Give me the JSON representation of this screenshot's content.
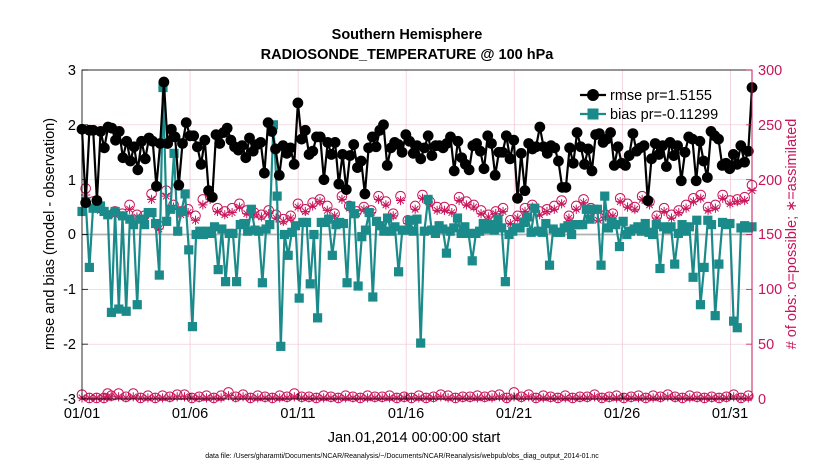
{
  "chart_data": {
    "type": "line",
    "title": [
      "Southern Hemisphere",
      "RADIOSONDE_TEMPERATURE @ 100 hPa"
    ],
    "xlabel": "Jan.01,2014 00:00:00 start",
    "ylabel": "rmse and bias (model - observation)",
    "ylabel_right": "# of obs: o=possible; ∗=assimilated",
    "footnote": "data file: /Users/gharamti/Documents/NCAR/Reanalysis/~/Documents/NCAR/Reanalysis/webpub/obs_diag_output_2014-01.nc",
    "xlim": [
      1,
      32
    ],
    "ylim": [
      -3,
      3
    ],
    "ylim_right": [
      0,
      300
    ],
    "x_ticks": [
      1,
      6,
      11,
      16,
      21,
      26,
      31
    ],
    "x_tick_labels": [
      "01/01",
      "01/06",
      "01/11",
      "01/16",
      "01/21",
      "01/26",
      "01/31"
    ],
    "y_ticks": [
      "-3",
      "-2",
      "-1",
      "0",
      "1",
      "2",
      "3"
    ],
    "y_ticks_right": [
      "0",
      "50",
      "100",
      "150",
      "200",
      "250",
      "300"
    ],
    "legend_position": "top-right",
    "zero_line": true,
    "colors": {
      "rmse": "#000000",
      "bias": "#1a8a8a",
      "counts": "#c8155a",
      "zero_line": "#b0b0b0"
    },
    "series": [
      {
        "name": "rmse pr=1.5155",
        "axis": "left",
        "marker": "circle",
        "values": [
          1.92,
          0.58,
          1.9,
          1.9,
          0.62,
          1.88,
          1.58,
          1.96,
          1.94,
          1.72,
          1.88,
          1.4,
          1.7,
          1.34,
          1.6,
          1.18,
          1.7,
          1.38,
          1.76,
          1.7,
          0.88,
          1.66,
          2.78,
          1.66,
          1.92,
          1.78,
          0.9,
          1.66,
          2.04,
          1.8,
          1.8,
          1.6,
          1.28,
          1.72,
          0.8,
          0.68,
          1.82,
          1.66,
          1.86,
          1.94,
          1.72,
          1.6,
          1.54,
          1.62,
          1.4,
          1.76,
          1.52,
          1.64,
          1.68,
          1.12,
          2.04,
          1.88,
          1.56,
          1.08,
          1.62,
          1.48,
          1.58,
          1.28,
          2.4,
          1.74,
          1.9,
          1.46,
          1.52,
          1.78,
          1.78,
          1.0,
          1.68,
          1.46,
          1.68,
          0.92,
          1.46,
          0.82,
          1.44,
          1.64,
          1.22,
          1.34,
          0.74,
          1.58,
          1.78,
          1.6,
          1.9,
          2.0,
          1.26,
          1.58,
          1.68,
          1.64,
          1.5,
          1.82,
          1.7,
          1.48,
          1.62,
          1.38,
          1.58,
          1.8,
          1.44,
          1.62,
          1.62,
          1.58,
          1.66,
          1.78,
          1.16,
          1.7,
          1.4,
          1.28,
          1.18,
          1.62,
          1.66,
          1.52,
          1.2,
          1.8,
          1.66,
          1.08,
          1.5,
          1.5,
          1.8,
          1.38,
          1.72,
          0.66,
          1.48,
          0.8,
          1.66,
          1.56,
          1.6,
          1.96,
          1.6,
          1.48,
          1.62,
          1.58,
          1.34,
          0.86,
          0.86,
          1.58,
          1.3,
          1.86,
          1.6,
          1.28,
          1.56,
          1.16,
          1.82,
          1.84,
          1.68,
          1.74,
          1.86,
          1.26,
          1.6,
          1.3,
          1.26,
          1.44,
          1.84,
          1.52,
          1.58,
          1.62,
          0.62,
          1.38,
          1.66,
          1.46,
          1.62,
          1.24,
          1.68,
          1.44,
          1.62,
          0.98,
          1.5,
          1.78,
          1.74,
          0.98,
          1.7,
          1.34,
          1.04,
          1.88,
          1.8,
          1.74,
          1.26,
          1.3,
          1.2,
          1.46,
          1.28,
          1.62,
          1.32,
          1.52,
          2.68
        ]
      },
      {
        "name": "bias pr=-0.11299",
        "axis": "left",
        "marker": "square",
        "values": [
          0.42,
          0.6,
          -0.6,
          0.48,
          0.48,
          0.52,
          0.42,
          0.36,
          -1.42,
          0.42,
          -1.36,
          0.34,
          -1.4,
          0.28,
          0.18,
          -1.28,
          0.28,
          0.18,
          0.4,
          0.4,
          0.2,
          -0.74,
          2.68,
          0.24,
          0.46,
          1.48,
          0.06,
          0.42,
          0.74,
          -0.28,
          -1.68,
          0.0,
          0.06,
          0.0,
          0.06,
          0.02,
          0.14,
          -0.64,
          0.1,
          -0.86,
          0.02,
          0.02,
          -0.86,
          0.18,
          0.2,
          0.06,
          0.46,
          0.08,
          0.06,
          -0.88,
          0.1,
          0.18,
          2.0,
          0.7,
          -2.04,
          0.0,
          -0.38,
          0.04,
          0.16,
          -1.16,
          0.22,
          0.22,
          -0.9,
          0.0,
          -1.52,
          0.22,
          0.22,
          0.28,
          -0.38,
          0.18,
          0.22,
          0.2,
          -0.88,
          0.52,
          0.38,
          -0.94,
          -0.04,
          0.08,
          0.4,
          -1.14,
          0.24,
          0.16,
          0.06,
          0.3,
          0.06,
          0.14,
          -0.68,
          0.08,
          0.08,
          0.26,
          0.06,
          0.28,
          -1.98,
          0.06,
          0.64,
          0.08,
          0.02,
          0.16,
          0.1,
          -0.34,
          0.06,
          0.12,
          0.3,
          0.02,
          0.14,
          0.02,
          -0.48,
          0.02,
          0.06,
          0.2,
          0.1,
          0.18,
          0.08,
          0.28,
          0.12,
          -0.86,
          0.0,
          0.06,
          0.12,
          0.12,
          0.22,
          0.32,
          0.04,
          0.48,
          0.06,
          0.04,
          0.2,
          -0.56,
          0.1,
          0.04,
          0.04,
          0.12,
          0.16,
          0.0,
          0.18,
          0.18,
          0.18,
          0.46,
          0.28,
          0.46,
          0.46,
          -0.56,
          0.7,
          0.12,
          0.22,
          0.18,
          -0.22,
          0.24,
          0.0,
          0.06,
          0.1,
          0.14,
          0.06,
          0.2,
          0.04,
          0.0,
          0.18,
          -0.62,
          0.14,
          0.1,
          0.14,
          -0.54,
          0.02,
          0.18,
          0.06,
          0.14,
          -0.78,
          0.26,
          -1.28,
          -0.6,
          0.26,
          0.18,
          -1.48,
          -0.54,
          0.22,
          0.18,
          0.2,
          -1.58,
          -1.7,
          0.12,
          0.16,
          0.12,
          0.14
        ]
      },
      {
        "name": "possible",
        "axis": "right",
        "marker": "circle-open",
        "values": [
          4,
          192,
          1,
          180,
          1,
          174,
          1,
          5,
          3,
          171,
          5,
          169,
          2,
          177,
          5,
          168,
          1,
          167,
          3,
          187,
          1,
          158,
          3,
          190,
          2,
          177,
          4,
          171,
          4,
          173,
          1,
          167,
          2,
          182,
          3,
          185,
          1,
          174,
          3,
          171,
          6,
          174,
          2,
          178,
          4,
          172,
          1,
          170,
          3,
          168,
          2,
          172,
          1,
          168,
          3,
          164,
          2,
          167,
          5,
          178,
          2,
          173,
          2,
          179,
          1,
          182,
          3,
          176,
          2,
          169,
          1,
          185,
          3,
          176,
          2,
          171,
          1,
          175,
          3,
          172,
          2,
          185,
          2,
          180,
          3,
          169,
          1,
          185,
          2,
          163,
          1,
          176,
          3,
          186,
          1,
          180,
          2,
          175,
          4,
          175,
          3,
          173,
          1,
          184,
          2,
          180,
          2,
          177,
          3,
          172,
          2,
          168,
          3,
          171,
          4,
          174,
          1,
          163,
          6,
          167,
          2,
          174,
          4,
          177,
          1,
          171,
          3,
          173,
          2,
          176,
          1,
          181,
          3,
          167,
          1,
          176,
          2,
          182,
          2,
          174,
          4,
          166,
          1,
          168,
          2,
          169,
          3,
          183,
          1,
          178,
          2,
          175,
          3,
          185,
          1,
          180,
          3,
          167,
          2,
          174,
          4,
          168,
          2,
          172,
          1,
          177,
          3,
          183,
          2,
          186,
          1,
          175,
          2,
          177,
          1,
          186,
          2,
          181,
          4,
          182,
          1,
          184,
          3,
          195
        ]
      },
      {
        "name": "assimilated",
        "axis": "right",
        "marker": "asterisk",
        "values": [
          1,
          186,
          1,
          176,
          1,
          172,
          1,
          2,
          2,
          168,
          2,
          167,
          1,
          173,
          2,
          166,
          1,
          165,
          1,
          182,
          1,
          155,
          1,
          185,
          1,
          175,
          2,
          168,
          2,
          170,
          1,
          163,
          1,
          177,
          1,
          182,
          1,
          171,
          1,
          168,
          3,
          170,
          1,
          175,
          2,
          169,
          1,
          168,
          1,
          166,
          1,
          169,
          1,
          165,
          1,
          162,
          1,
          165,
          2,
          175,
          1,
          171,
          1,
          176,
          1,
          180,
          1,
          172,
          1,
          167,
          1,
          182,
          1,
          174,
          1,
          169,
          1,
          173,
          1,
          170,
          1,
          182,
          1,
          177,
          1,
          167,
          1,
          181,
          1,
          160,
          1,
          173,
          1,
          183,
          1,
          177,
          1,
          172,
          2,
          172,
          1,
          170,
          1,
          181,
          1,
          177,
          1,
          175,
          1,
          169,
          1,
          166,
          1,
          169,
          2,
          171,
          1,
          160,
          2,
          165,
          1,
          171,
          2,
          175,
          1,
          168,
          1,
          171,
          1,
          173,
          1,
          178,
          1,
          165,
          1,
          173,
          1,
          179,
          1,
          171,
          2,
          163,
          1,
          166,
          1,
          167,
          1,
          180,
          1,
          175,
          1,
          173,
          1,
          182,
          1,
          177,
          1,
          165,
          1,
          171,
          2,
          165,
          1,
          170,
          1,
          174,
          1,
          180,
          1,
          183,
          1,
          172,
          1,
          174,
          1,
          183,
          1,
          178,
          2,
          180,
          1,
          181,
          1,
          190
        ]
      }
    ]
  }
}
